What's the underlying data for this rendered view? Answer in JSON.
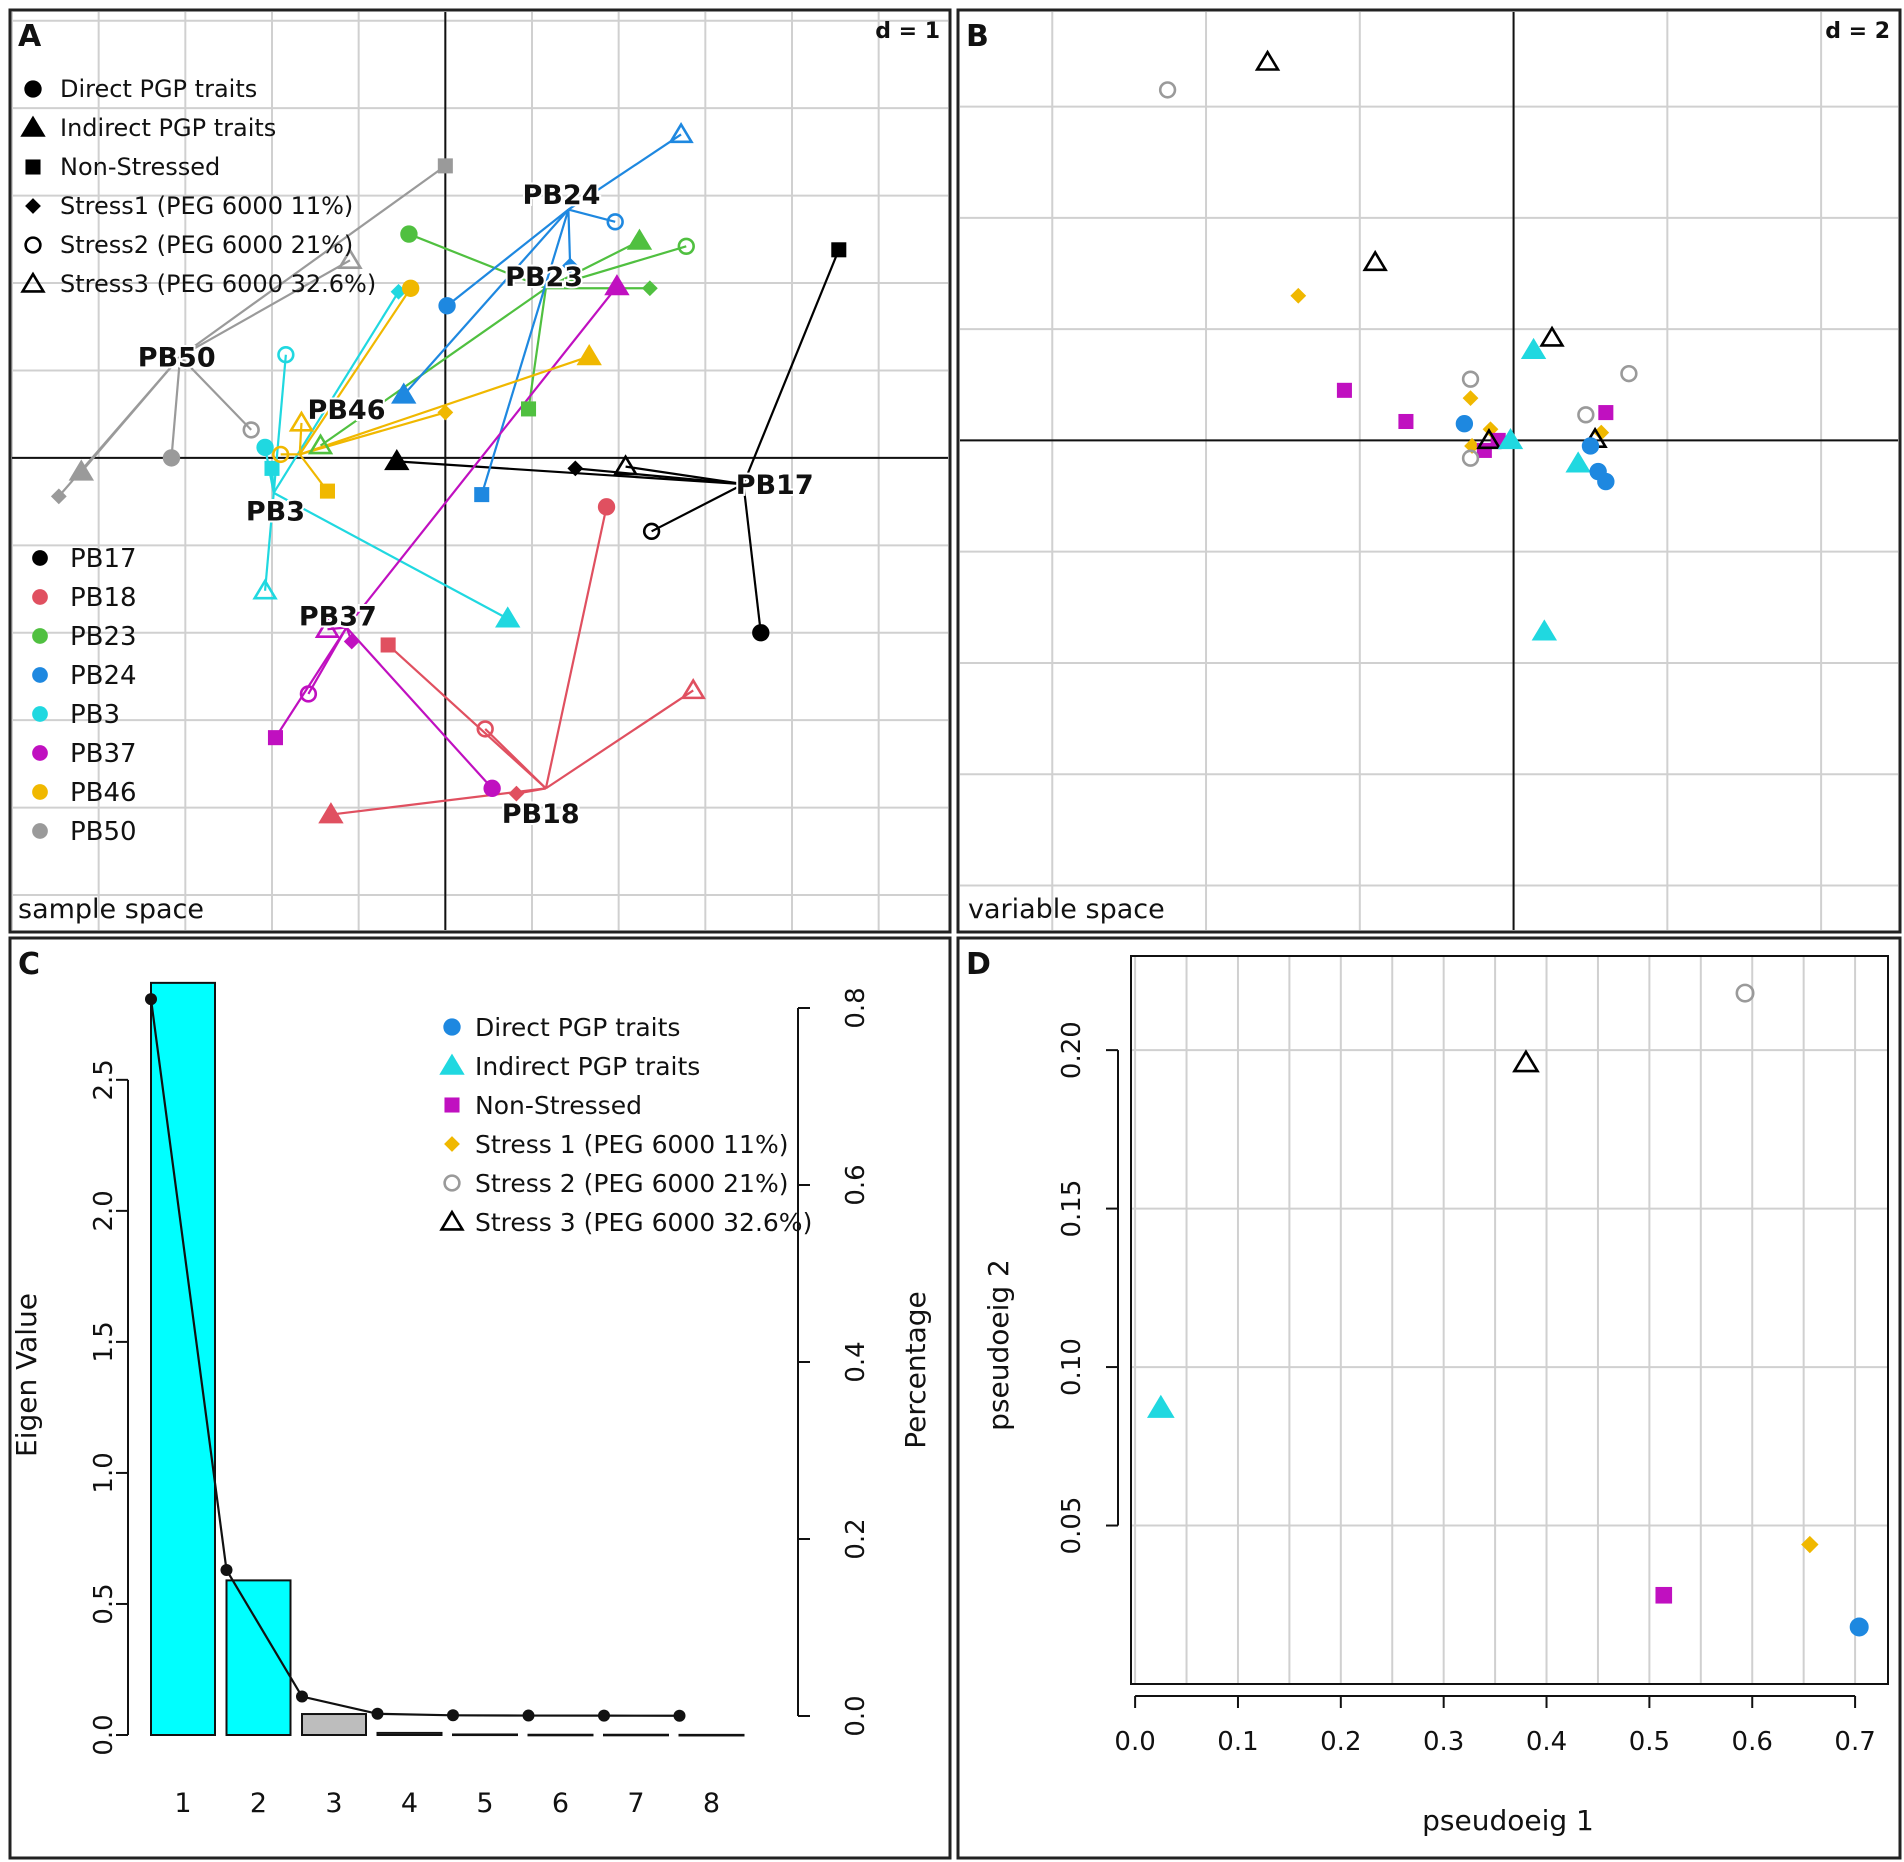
{
  "figure": {
    "panels": [
      {
        "letter": "A",
        "d_label": "d = 1",
        "space_label": "sample space"
      },
      {
        "letter": "B",
        "d_label": "d = 2",
        "space_label": "variable space"
      },
      {
        "letter": "C"
      },
      {
        "letter": "D"
      }
    ]
  },
  "colors": {
    "PB17": "#000000",
    "PB18": "#e05060",
    "PB23": "#50c040",
    "PB24": "#1e88e0",
    "PB3": "#20d8e0",
    "PB37": "#c010c0",
    "PB46": "#f0b800",
    "PB50": "#9a9a9a",
    "bar_main": "#00ffff",
    "bar_minor": "#bdbdbd",
    "grid": "#d0d0d0"
  },
  "chart_data": [
    {
      "id": "A",
      "type": "scatter",
      "title": "sample space",
      "scale_label": "d = 1",
      "grid": true,
      "xlim": [
        -2.5,
        2.9
      ],
      "ylim": [
        -2.7,
        2.55
      ],
      "shape_legend": [
        {
          "label": "Direct PGP traits",
          "shape": "circle-filled"
        },
        {
          "label": "Indirect PGP traits",
          "shape": "triangle-filled"
        },
        {
          "label": "Non-Stressed",
          "shape": "square-filled"
        },
        {
          "label": "Stress1 (PEG 6000 11%)",
          "shape": "diamond-filled"
        },
        {
          "label": "Stress2 (PEG 6000 21%)",
          "shape": "circle-open"
        },
        {
          "label": "Stress3 (PEG 6000 32.6%)",
          "shape": "triangle-open"
        }
      ],
      "group_legend": [
        "PB17",
        "PB18",
        "PB23",
        "PB24",
        "PB3",
        "PB37",
        "PB46",
        "PB50"
      ],
      "groups": [
        {
          "name": "PB17",
          "centroid": [
            1.72,
            -0.15
          ],
          "label_pos": [
            1.9,
            -0.15
          ],
          "points": [
            {
              "shape": "circle-filled",
              "x": 1.82,
              "y": -1.0
            },
            {
              "shape": "triangle-filled",
              "x": -0.28,
              "y": -0.02
            },
            {
              "shape": "square-filled",
              "x": 2.27,
              "y": 1.19
            },
            {
              "shape": "diamond-filled",
              "x": 0.75,
              "y": -0.06
            },
            {
              "shape": "circle-open",
              "x": 1.19,
              "y": -0.42
            },
            {
              "shape": "triangle-open",
              "x": 1.04,
              "y": -0.05
            }
          ]
        },
        {
          "name": "PB18",
          "centroid": [
            0.58,
            -1.89
          ],
          "label_pos": [
            0.55,
            -2.03
          ],
          "points": [
            {
              "shape": "circle-filled",
              "x": 0.93,
              "y": -0.28
            },
            {
              "shape": "triangle-filled",
              "x": -0.66,
              "y": -2.04
            },
            {
              "shape": "square-filled",
              "x": -0.33,
              "y": -1.07
            },
            {
              "shape": "diamond-filled",
              "x": 0.41,
              "y": -1.92
            },
            {
              "shape": "circle-open",
              "x": 0.23,
              "y": -1.55
            },
            {
              "shape": "triangle-open",
              "x": 1.43,
              "y": -1.33
            }
          ]
        },
        {
          "name": "PB23",
          "centroid": [
            0.58,
            0.97
          ],
          "label_pos": [
            0.57,
            1.04
          ],
          "points": [
            {
              "shape": "circle-filled",
              "x": -0.21,
              "y": 1.28
            },
            {
              "shape": "triangle-filled",
              "x": 1.12,
              "y": 1.24
            },
            {
              "shape": "square-filled",
              "x": 0.48,
              "y": 0.28
            },
            {
              "shape": "diamond-filled",
              "x": 1.18,
              "y": 0.97
            },
            {
              "shape": "circle-open",
              "x": 1.39,
              "y": 1.21
            },
            {
              "shape": "triangle-open",
              "x": -0.72,
              "y": 0.07
            }
          ]
        },
        {
          "name": "PB24",
          "centroid": [
            0.71,
            1.42
          ],
          "label_pos": [
            0.67,
            1.51
          ],
          "points": [
            {
              "shape": "circle-filled",
              "x": 0.01,
              "y": 0.87
            },
            {
              "shape": "triangle-filled",
              "x": -0.24,
              "y": 0.36
            },
            {
              "shape": "square-filled",
              "x": 0.21,
              "y": -0.21
            },
            {
              "shape": "diamond-filled",
              "x": 0.72,
              "y": 1.1
            },
            {
              "shape": "circle-open",
              "x": 0.98,
              "y": 1.35
            },
            {
              "shape": "triangle-open",
              "x": 1.36,
              "y": 1.85
            }
          ]
        },
        {
          "name": "PB3",
          "centroid": [
            -0.99,
            -0.2
          ],
          "label_pos": [
            -0.98,
            -0.3
          ],
          "points": [
            {
              "shape": "circle-filled",
              "x": -1.04,
              "y": 0.06
            },
            {
              "shape": "triangle-filled",
              "x": 0.36,
              "y": -0.92
            },
            {
              "shape": "square-filled",
              "x": -1.0,
              "y": -0.06
            },
            {
              "shape": "diamond-filled",
              "x": -0.27,
              "y": 0.95
            },
            {
              "shape": "circle-open",
              "x": -0.92,
              "y": 0.59
            },
            {
              "shape": "triangle-open",
              "x": -1.04,
              "y": -0.76
            }
          ]
        },
        {
          "name": "PB37",
          "centroid": [
            -0.57,
            -0.97
          ],
          "label_pos": [
            -0.62,
            -0.9
          ],
          "points": [
            {
              "shape": "circle-filled",
              "x": 0.27,
              "y": -1.89
            },
            {
              "shape": "triangle-filled",
              "x": 0.99,
              "y": 0.98
            },
            {
              "shape": "square-filled",
              "x": -0.98,
              "y": -1.6
            },
            {
              "shape": "diamond-filled",
              "x": -0.54,
              "y": -1.05
            },
            {
              "shape": "circle-open",
              "x": -0.79,
              "y": -1.35
            },
            {
              "shape": "triangle-open",
              "x": -0.68,
              "y": -0.98
            }
          ]
        },
        {
          "name": "PB46",
          "centroid": [
            -0.84,
            0.02
          ],
          "label_pos": [
            -0.57,
            0.28
          ],
          "points": [
            {
              "shape": "circle-filled",
              "x": -0.2,
              "y": 0.97
            },
            {
              "shape": "triangle-filled",
              "x": 0.83,
              "y": 0.58
            },
            {
              "shape": "square-filled",
              "x": -0.68,
              "y": -0.19
            },
            {
              "shape": "diamond-filled",
              "x": 0.0,
              "y": 0.26
            },
            {
              "shape": "circle-open",
              "x": -0.95,
              "y": 0.02
            },
            {
              "shape": "triangle-open",
              "x": -0.83,
              "y": 0.2
            }
          ]
        },
        {
          "name": "PB50",
          "centroid": [
            -1.53,
            0.58
          ],
          "label_pos": [
            -1.55,
            0.58
          ],
          "points": [
            {
              "shape": "circle-filled",
              "x": -1.58,
              "y": 0.0
            },
            {
              "shape": "triangle-filled",
              "x": -2.1,
              "y": -0.08
            },
            {
              "shape": "square-filled",
              "x": 0.0,
              "y": 1.67
            },
            {
              "shape": "diamond-filled",
              "x": -2.23,
              "y": -0.22
            },
            {
              "shape": "circle-open",
              "x": -1.12,
              "y": 0.16
            },
            {
              "shape": "triangle-open",
              "x": -0.55,
              "y": 1.13
            }
          ]
        }
      ]
    },
    {
      "id": "B",
      "type": "scatter",
      "title": "variable space",
      "scale_label": "d = 2",
      "grid": true,
      "xlim": [
        -3.6,
        2.5
      ],
      "ylim": [
        -4.4,
        3.85
      ],
      "points": [
        {
          "shape": "circle-open",
          "color": "#9a9a9a",
          "x": -2.25,
          "y": 3.15
        },
        {
          "shape": "triangle-open",
          "color": "#000000",
          "x": -1.6,
          "y": 3.4
        },
        {
          "shape": "triangle-open",
          "color": "#000000",
          "x": -0.9,
          "y": 1.6
        },
        {
          "shape": "diamond-filled",
          "color": "#f0b800",
          "x": -1.4,
          "y": 1.3
        },
        {
          "shape": "square-filled",
          "color": "#c010c0",
          "x": -1.1,
          "y": 0.45
        },
        {
          "shape": "square-filled",
          "color": "#c010c0",
          "x": -0.7,
          "y": 0.17
        },
        {
          "shape": "circle-open",
          "color": "#9a9a9a",
          "x": -0.28,
          "y": 0.55
        },
        {
          "shape": "diamond-filled",
          "color": "#f0b800",
          "x": -0.28,
          "y": 0.38
        },
        {
          "shape": "circle-filled",
          "color": "#1e88e0",
          "x": -0.32,
          "y": 0.15
        },
        {
          "shape": "diamond-filled",
          "color": "#f0b800",
          "x": -0.15,
          "y": 0.1
        },
        {
          "shape": "diamond-filled",
          "color": "#f0b800",
          "x": -0.27,
          "y": -0.05
        },
        {
          "shape": "square-filled",
          "color": "#c010c0",
          "x": -0.1,
          "y": 0.0
        },
        {
          "shape": "square-filled",
          "color": "#c010c0",
          "x": -0.19,
          "y": -0.09
        },
        {
          "shape": "triangle-open",
          "color": "#000000",
          "x": -0.16,
          "y": 0.0
        },
        {
          "shape": "triangle-filled",
          "color": "#20d8e0",
          "x": -0.02,
          "y": 0.0
        },
        {
          "shape": "circle-open",
          "color": "#9a9a9a",
          "x": -0.28,
          "y": -0.16
        },
        {
          "shape": "triangle-filled",
          "color": "#20d8e0",
          "x": 0.13,
          "y": 0.81
        },
        {
          "shape": "triangle-open",
          "color": "#000000",
          "x": 0.25,
          "y": 0.92
        },
        {
          "shape": "circle-open",
          "color": "#9a9a9a",
          "x": 0.75,
          "y": 0.6
        },
        {
          "shape": "circle-open",
          "color": "#9a9a9a",
          "x": 0.47,
          "y": 0.23
        },
        {
          "shape": "square-filled",
          "color": "#c010c0",
          "x": 0.6,
          "y": 0.25
        },
        {
          "shape": "diamond-filled",
          "color": "#f0b800",
          "x": 0.57,
          "y": 0.07
        },
        {
          "shape": "triangle-open",
          "color": "#000000",
          "x": 0.53,
          "y": 0.01
        },
        {
          "shape": "circle-filled",
          "color": "#1e88e0",
          "x": 0.5,
          "y": -0.05
        },
        {
          "shape": "triangle-filled",
          "color": "#20d8e0",
          "x": 0.42,
          "y": -0.21
        },
        {
          "shape": "circle-filled",
          "color": "#1e88e0",
          "x": 0.55,
          "y": -0.28
        },
        {
          "shape": "circle-filled",
          "color": "#1e88e0",
          "x": 0.6,
          "y": -0.37
        },
        {
          "shape": "triangle-filled",
          "color": "#20d8e0",
          "x": 0.2,
          "y": -1.72
        }
      ]
    },
    {
      "id": "C",
      "type": "bar",
      "ylabel": "Eigen Value",
      "y2label": "Percentage",
      "categories": [
        "1",
        "2",
        "3",
        "4",
        "5",
        "6",
        "7",
        "8"
      ],
      "values": [
        2.87,
        0.59,
        0.08,
        0.008,
        0.002,
        0.001,
        0.001,
        0.0005
      ],
      "bar_colors": [
        "#00ffff",
        "#00ffff",
        "#bdbdbd",
        "#bdbdbd",
        "#bdbdbd",
        "#bdbdbd",
        "#bdbdbd",
        "#bdbdbd"
      ],
      "ylim": [
        0,
        2.9
      ],
      "yticks": [
        0.0,
        0.5,
        1.0,
        1.5,
        2.0,
        2.5
      ],
      "ytick_labels": [
        "0.0",
        "0.5",
        "1.0",
        "1.5",
        "2.0",
        "2.5"
      ],
      "percentage_line": [
        0.81,
        0.165,
        0.022,
        0.0025,
        0.0008,
        0.0005,
        0.0004,
        0.0003
      ],
      "y2lim": [
        0,
        0.8
      ],
      "y2ticks": [
        0.0,
        0.2,
        0.4,
        0.6,
        0.8
      ],
      "y2tick_labels": [
        "0.0",
        "0.2",
        "0.4",
        "0.6",
        "0.8"
      ],
      "legend": [
        {
          "label": "Direct PGP traits",
          "shape": "circle-filled",
          "color": "#1e88e0"
        },
        {
          "label": "Indirect PGP traits",
          "shape": "triangle-filled",
          "color": "#20d8e0"
        },
        {
          "label": "Non-Stressed",
          "shape": "square-filled",
          "color": "#c010c0"
        },
        {
          "label": "Stress 1 (PEG 6000 11%)",
          "shape": "diamond-filled",
          "color": "#f0b800"
        },
        {
          "label": "Stress 2 (PEG 6000 21%)",
          "shape": "circle-open",
          "color": "#9a9a9a"
        },
        {
          "label": "Stress 3 (PEG 6000 32.6%)",
          "shape": "triangle-open",
          "color": "#000000"
        }
      ]
    },
    {
      "id": "D",
      "type": "scatter",
      "xlabel": "pseudoeig 1",
      "ylabel": "pseudoeig 2",
      "grid": true,
      "xlim": [
        -0.004,
        0.732
      ],
      "ylim": [
        0.0,
        0.2297
      ],
      "xticks": [
        0.0,
        0.1,
        0.2,
        0.3,
        0.4,
        0.5,
        0.6,
        0.7
      ],
      "xtick_labels": [
        "0.0",
        "0.1",
        "0.2",
        "0.3",
        "0.4",
        "0.5",
        "0.6",
        "0.7"
      ],
      "yticks": [
        0.05,
        0.1,
        0.15,
        0.2
      ],
      "ytick_labels": [
        "0.05",
        "0.10",
        "0.15",
        "0.20"
      ],
      "points": [
        {
          "name": "Indirect PGP traits",
          "shape": "triangle-filled",
          "color": "#20d8e0",
          "x": 0.025,
          "y": 0.087
        },
        {
          "name": "Stress 3 (PEG 6000 32.6%)",
          "shape": "triangle-open",
          "color": "#000000",
          "x": 0.38,
          "y": 0.196
        },
        {
          "name": "Stress 2 (PEG 6000 21%)",
          "shape": "circle-open",
          "color": "#9a9a9a",
          "x": 0.593,
          "y": 0.218
        },
        {
          "name": "Non-Stressed",
          "shape": "square-filled",
          "color": "#c010c0",
          "x": 0.514,
          "y": 0.028
        },
        {
          "name": "Stress 1 (PEG 6000 11%)",
          "shape": "diamond-filled",
          "color": "#f0b800",
          "x": 0.656,
          "y": 0.044
        },
        {
          "name": "Direct PGP traits",
          "shape": "circle-filled",
          "color": "#1e88e0",
          "x": 0.704,
          "y": 0.018
        }
      ]
    }
  ]
}
